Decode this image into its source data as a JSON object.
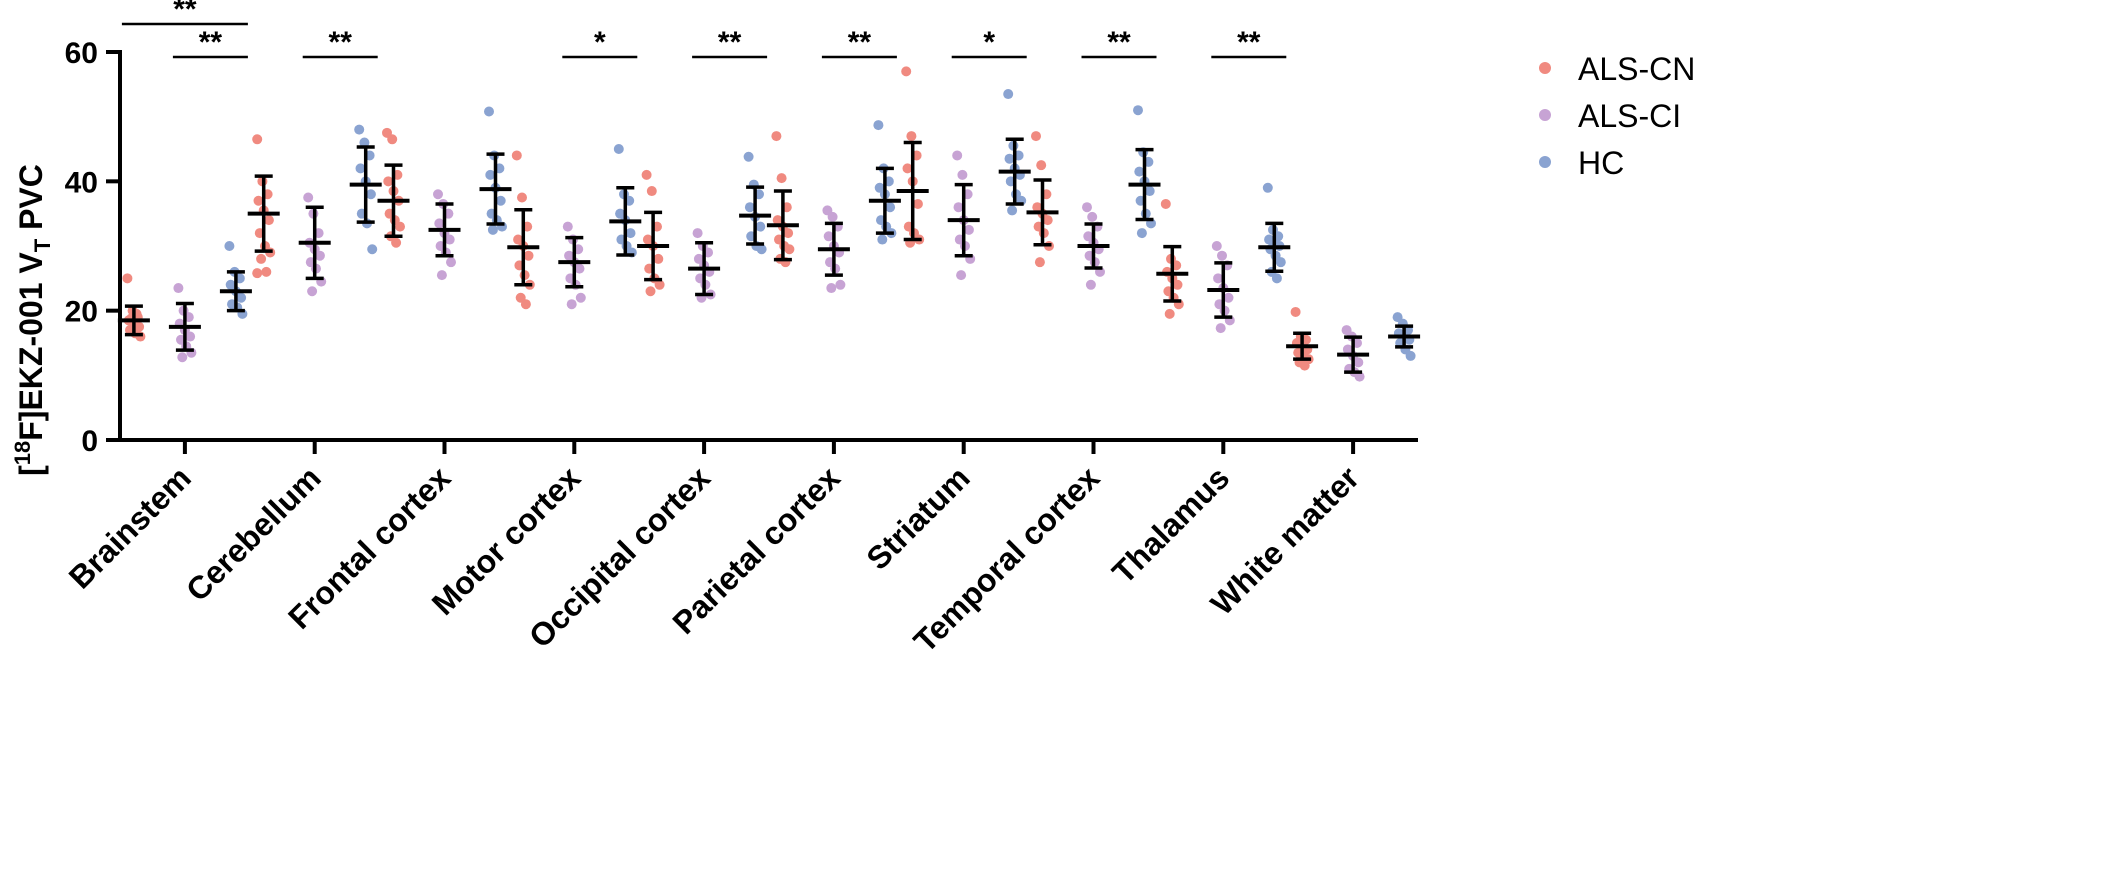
{
  "chart_data": {
    "type": "scatter",
    "ylabel_parts": [
      "[",
      "18",
      "F]EKZ-001 V",
      "T",
      " PVC"
    ],
    "ylim": [
      0,
      60
    ],
    "yticks": [
      0,
      20,
      40,
      60
    ],
    "categories": [
      "Brainstem",
      "Cerebellum",
      "Frontal cortex",
      "Motor cortex",
      "Occipital cortex",
      "Parietal cortex",
      "Striatum",
      "Temporal cortex",
      "Thalamus",
      "White matter"
    ],
    "legend_position": "top-right",
    "series": [
      {
        "name": "ALS-CN",
        "color": "#f08a80",
        "mean": [
          18.5,
          35.0,
          37.0,
          29.8,
          30.0,
          33.2,
          38.5,
          35.2,
          25.7,
          14.5
        ],
        "sd": [
          2.2,
          5.8,
          5.5,
          5.8,
          5.2,
          5.3,
          7.5,
          5.0,
          4.2,
          2.0
        ],
        "points": [
          [
            25.0,
            20.0,
            19.0,
            18.5,
            18.0,
            17.5,
            17.0,
            16.5,
            16.0,
            18.8,
            19.5
          ],
          [
            46.5,
            40.0,
            38.0,
            37.0,
            35.5,
            34.0,
            32.0,
            30.0,
            29.0,
            28.0,
            26.0,
            25.8
          ],
          [
            47.5,
            46.5,
            41.0,
            40.0,
            38.5,
            37.0,
            35.0,
            34.0,
            33.0,
            31.5,
            30.5
          ],
          [
            44.0,
            37.5,
            33.0,
            31.0,
            30.0,
            28.5,
            27.0,
            25.5,
            24.0,
            22.0,
            21.0
          ],
          [
            41.0,
            38.5,
            33.0,
            31.0,
            30.0,
            28.0,
            26.5,
            25.0,
            24.0,
            23.0
          ],
          [
            47.0,
            40.5,
            36.0,
            34.0,
            33.0,
            32.0,
            31.0,
            30.0,
            29.5,
            28.0,
            27.5
          ],
          [
            57.0,
            47.0,
            44.0,
            42.0,
            40.0,
            36.5,
            33.0,
            32.0,
            31.0,
            30.5
          ],
          [
            47.0,
            42.5,
            38.0,
            36.0,
            35.0,
            34.0,
            33.0,
            32.0,
            30.0,
            27.5
          ],
          [
            36.5,
            28.0,
            27.0,
            26.0,
            25.0,
            24.0,
            23.0,
            22.0,
            21.0,
            19.5
          ],
          [
            19.8,
            16.0,
            15.5,
            15.0,
            14.5,
            14.0,
            13.5,
            13.0,
            12.5,
            12.0,
            11.5
          ]
        ]
      },
      {
        "name": "ALS-CI",
        "color": "#c7a3d4",
        "mean": [
          17.5,
          30.5,
          32.5,
          27.5,
          26.5,
          29.5,
          34.0,
          30.0,
          23.2,
          13.2
        ],
        "sd": [
          3.6,
          5.5,
          4.0,
          3.8,
          4.0,
          4.0,
          5.5,
          3.4,
          4.2,
          2.7
        ],
        "points": [
          [
            23.5,
            20.0,
            19.0,
            18.0,
            17.0,
            16.0,
            15.5,
            14.5,
            13.5,
            12.8
          ],
          [
            37.5,
            35.0,
            32.0,
            30.5,
            29.5,
            28.5,
            27.5,
            26.5,
            24.5,
            23.0
          ],
          [
            38.0,
            36.5,
            35.0,
            33.5,
            32.0,
            31.0,
            30.0,
            29.0,
            27.5,
            25.5
          ],
          [
            33.0,
            31.0,
            29.5,
            28.5,
            27.5,
            26.5,
            25.0,
            24.0,
            22.0,
            21.0
          ],
          [
            32.0,
            30.0,
            29.0,
            28.0,
            27.0,
            26.0,
            25.0,
            24.0,
            22.5,
            22.0
          ],
          [
            35.5,
            34.5,
            33.0,
            31.5,
            30.0,
            29.0,
            27.5,
            26.5,
            24.0,
            23.5
          ],
          [
            44.0,
            41.0,
            38.0,
            36.0,
            34.0,
            32.5,
            31.0,
            30.0,
            28.0,
            25.5
          ],
          [
            36.0,
            34.5,
            33.0,
            31.5,
            30.5,
            29.5,
            28.5,
            27.5,
            26.0,
            24.0
          ],
          [
            30.0,
            28.5,
            27.0,
            25.0,
            23.5,
            22.0,
            21.0,
            20.0,
            18.5,
            17.3
          ],
          [
            17.0,
            16.0,
            15.0,
            14.0,
            13.0,
            12.0,
            11.0,
            10.5,
            9.8
          ]
        ]
      },
      {
        "name": "HC",
        "color": "#8aa3d1",
        "mean": [
          23.0,
          39.5,
          38.8,
          33.8,
          34.7,
          37.0,
          41.5,
          39.5,
          29.8,
          16.0
        ],
        "sd": [
          3.0,
          5.8,
          5.4,
          5.2,
          4.4,
          5.0,
          5.0,
          5.4,
          3.7,
          1.6
        ],
        "points": [
          [
            30.0,
            26.0,
            25.0,
            24.0,
            23.0,
            22.0,
            21.0,
            20.5,
            19.5
          ],
          [
            48.0,
            46.0,
            44.0,
            42.0,
            40.0,
            38.0,
            35.0,
            33.5,
            29.5
          ],
          [
            50.8,
            44.0,
            42.0,
            41.0,
            39.0,
            37.0,
            35.0,
            34.0,
            33.0,
            32.5
          ],
          [
            45.0,
            38.0,
            37.0,
            35.0,
            34.0,
            32.0,
            31.0,
            30.0,
            29.0
          ],
          [
            43.8,
            39.5,
            38.0,
            36.0,
            34.5,
            33.0,
            31.5,
            30.0,
            29.5
          ],
          [
            48.7,
            42.0,
            40.0,
            39.0,
            38.0,
            36.0,
            34.0,
            33.0,
            32.0,
            31.0
          ],
          [
            53.5,
            45.5,
            44.0,
            43.5,
            42.0,
            41.0,
            40.0,
            38.0,
            37.0,
            35.5
          ],
          [
            51.0,
            44.5,
            43.0,
            41.5,
            40.0,
            38.5,
            37.0,
            35.0,
            33.5,
            32.0
          ],
          [
            39.0,
            32.5,
            31.5,
            31.0,
            30.5,
            30.0,
            29.5,
            28.5,
            27.5,
            26.0,
            25.0
          ],
          [
            19.0,
            18.0,
            17.0,
            16.5,
            16.0,
            15.5,
            15.0,
            14.0,
            13.0
          ]
        ]
      }
    ],
    "significance": [
      {
        "category": "Brainstem",
        "groups": [
          "ALS-CN",
          "HC"
        ],
        "label": "**",
        "row": 1
      },
      {
        "category": "Brainstem",
        "groups": [
          "ALS-CI",
          "HC"
        ],
        "label": "**",
        "row": 0
      },
      {
        "category": "Cerebellum",
        "groups": [
          "ALS-CI",
          "HC"
        ],
        "label": "**",
        "row": 0
      },
      {
        "category": "Motor cortex",
        "groups": [
          "ALS-CI",
          "HC"
        ],
        "label": "*",
        "row": 0
      },
      {
        "category": "Occipital cortex",
        "groups": [
          "ALS-CI",
          "HC"
        ],
        "label": "**",
        "row": 0
      },
      {
        "category": "Parietal cortex",
        "groups": [
          "ALS-CI",
          "HC"
        ],
        "label": "**",
        "row": 0
      },
      {
        "category": "Striatum",
        "groups": [
          "ALS-CI",
          "HC"
        ],
        "label": "*",
        "row": 0
      },
      {
        "category": "Temporal cortex",
        "groups": [
          "ALS-CI",
          "HC"
        ],
        "label": "**",
        "row": 0
      },
      {
        "category": "Thalamus",
        "groups": [
          "ALS-CI",
          "HC"
        ],
        "label": "**",
        "row": 0
      }
    ]
  }
}
